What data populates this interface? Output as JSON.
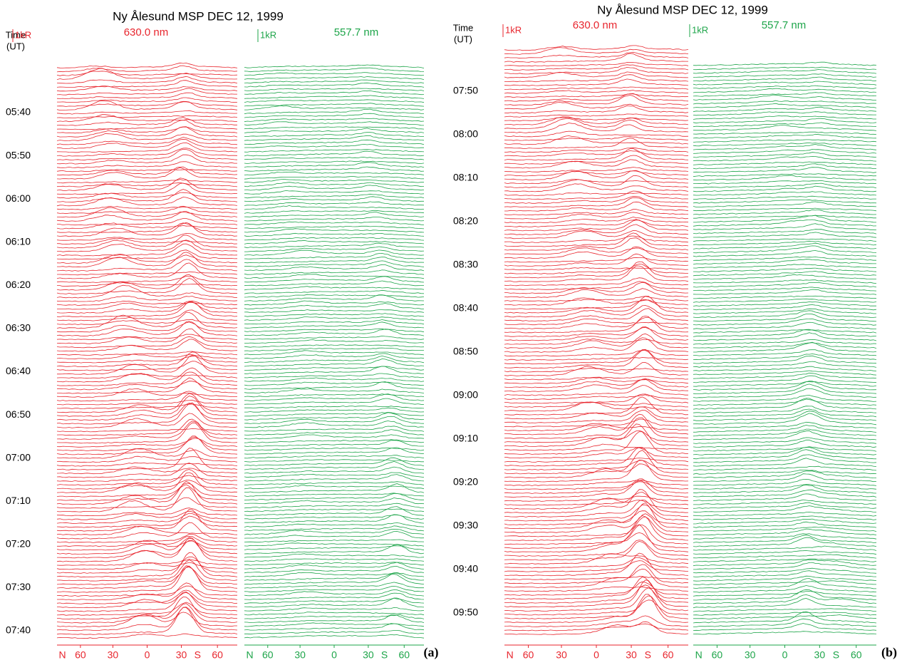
{
  "panels": [
    {
      "title": "Ny Ålesund MSP  DEC 12, 1999",
      "time_label": [
        "Time",
        "(UT)"
      ],
      "label": "(a)",
      "times": [
        "05:40",
        "05:50",
        "06:00",
        "06:10",
        "06:20",
        "06:30",
        "06:40",
        "06:50",
        "07:00",
        "07:10",
        "07:20",
        "07:30",
        "07:40"
      ],
      "channels": [
        {
          "scale": "1kR",
          "wavelength": "630.0 nm",
          "color": "#e8262e",
          "x_labels": [
            "N",
            "60",
            "30",
            "0",
            "30",
            "S",
            "60"
          ]
        },
        {
          "scale": "1kR",
          "wavelength": "557.7 nm",
          "color": "#1ea54a",
          "x_labels": [
            "N",
            "60",
            "30",
            "0",
            "30",
            "S",
            "60"
          ]
        }
      ]
    },
    {
      "title": "Ny Ålesund MSP  DEC 12, 1999",
      "time_label": [
        "Time",
        "(UT)"
      ],
      "label": "(b)",
      "times": [
        "07:50",
        "08:00",
        "08:10",
        "08:20",
        "08:30",
        "08:40",
        "08:50",
        "09:00",
        "09:10",
        "09:20",
        "09:30",
        "09:40",
        "09:50"
      ],
      "channels": [
        {
          "scale": "1kR",
          "wavelength": "630.0 nm",
          "color": "#e8262e",
          "x_labels": [
            "N",
            "60",
            "30",
            "0",
            "30",
            "S",
            "60"
          ]
        },
        {
          "scale": "1kR",
          "wavelength": "557.7 nm",
          "color": "#1ea54a",
          "x_labels": [
            "N",
            "60",
            "30",
            "0",
            "30",
            "S",
            "60"
          ]
        }
      ]
    }
  ]
}
